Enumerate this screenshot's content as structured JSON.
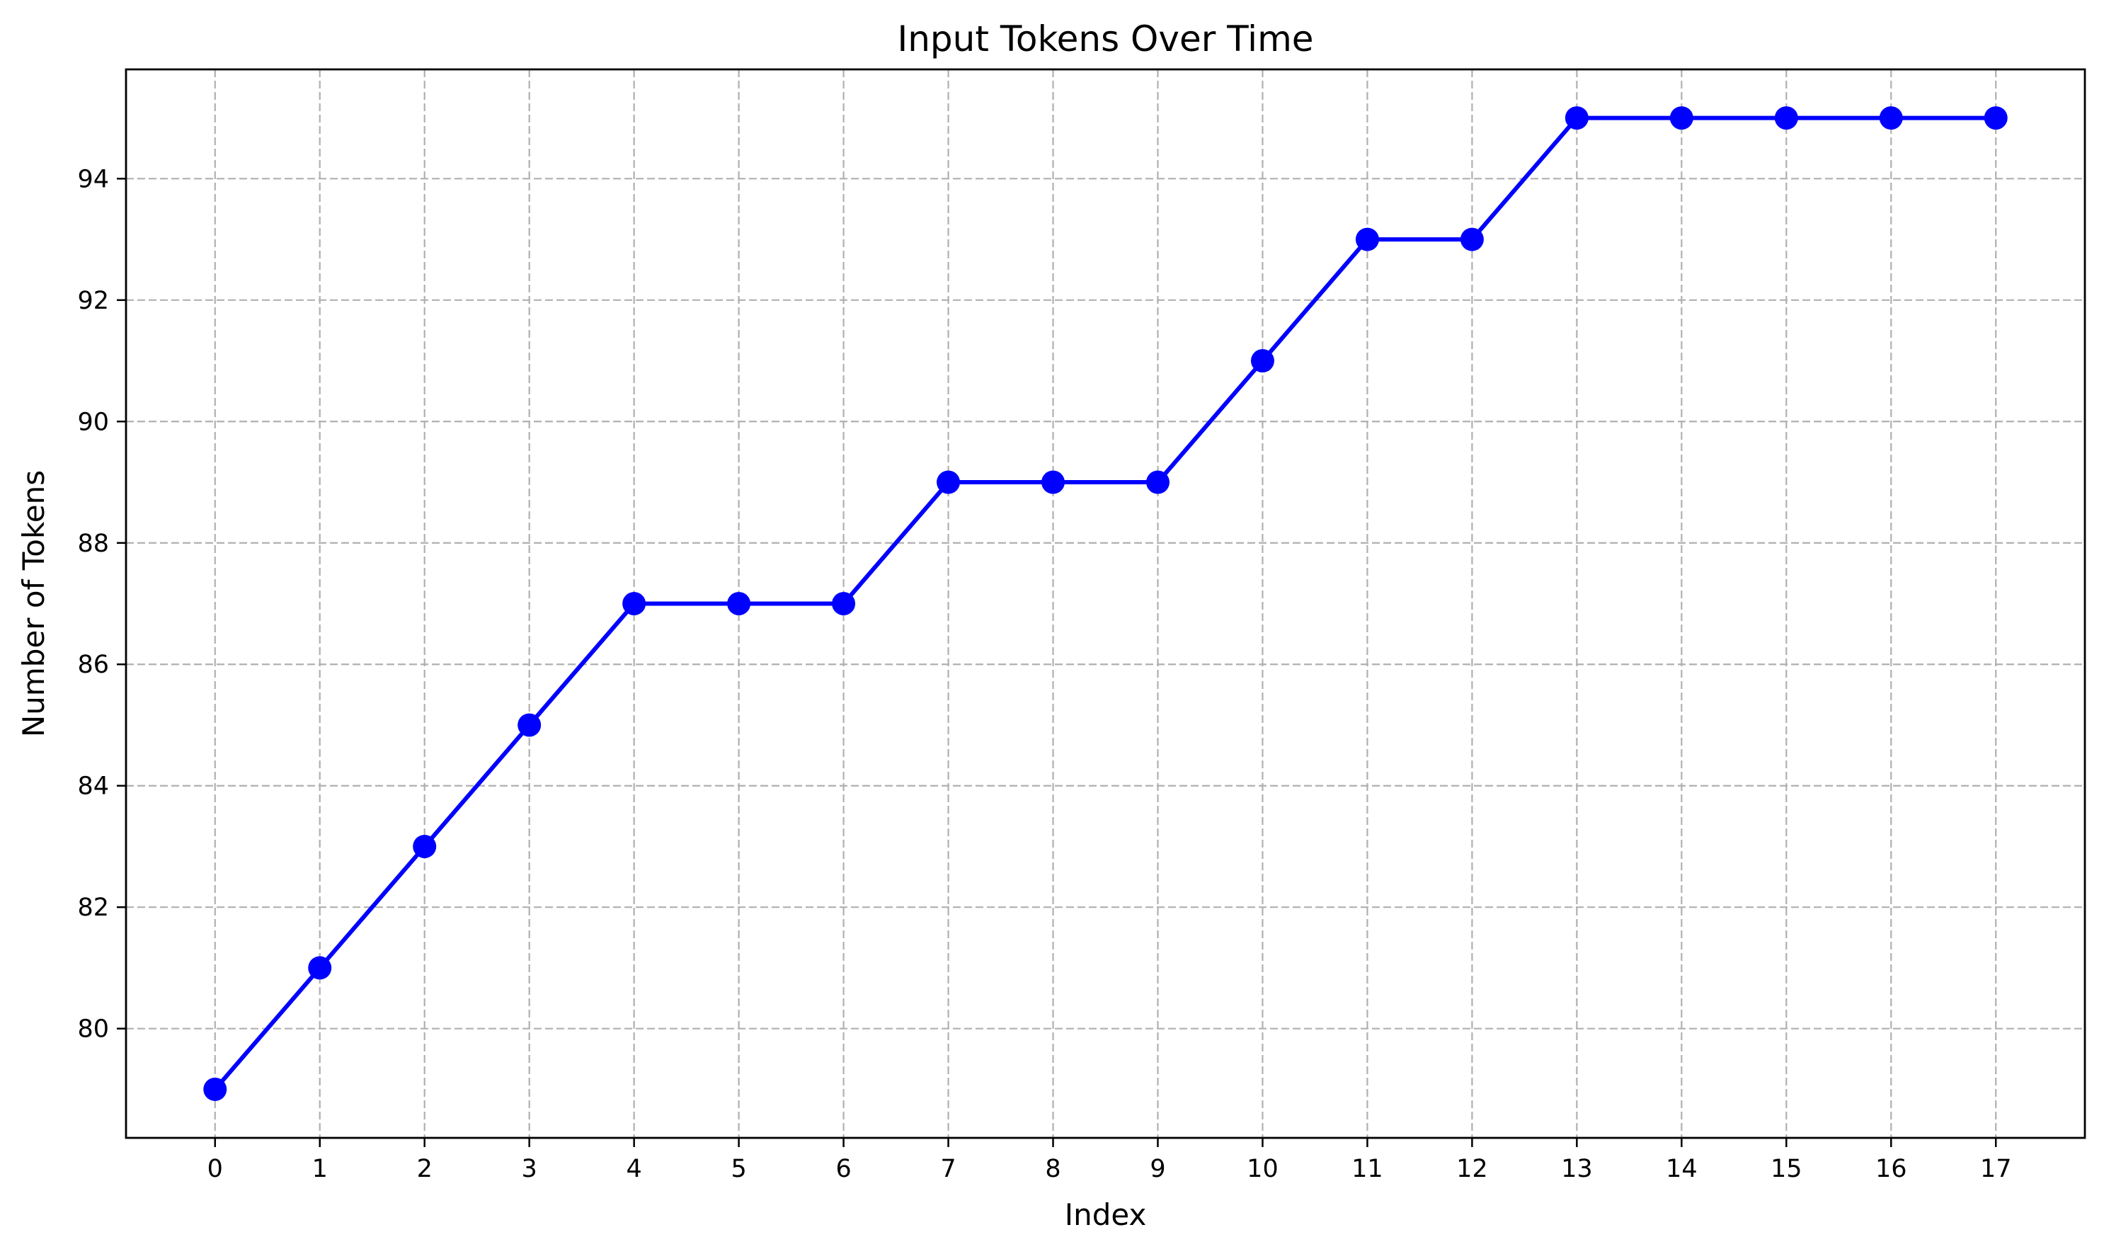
{
  "chart_data": {
    "type": "line",
    "title": "Input Tokens Over Time",
    "xlabel": "Index",
    "ylabel": "Number of Tokens",
    "x": [
      0,
      1,
      2,
      3,
      4,
      5,
      6,
      7,
      8,
      9,
      10,
      11,
      12,
      13,
      14,
      15,
      16,
      17
    ],
    "series": [
      {
        "values": [
          79,
          81,
          83,
          85,
          87,
          87,
          87,
          89,
          89,
          89,
          91,
          93,
          93,
          95,
          95,
          95,
          95,
          95
        ],
        "color": "#0000ff",
        "marker": "circle"
      }
    ],
    "xticks": [
      "0",
      "1",
      "2",
      "3",
      "4",
      "5",
      "6",
      "7",
      "8",
      "9",
      "10",
      "11",
      "12",
      "13",
      "14",
      "15",
      "16",
      "17"
    ],
    "yticks": [
      "80",
      "82",
      "84",
      "86",
      "88",
      "90",
      "92",
      "94"
    ],
    "xlim": [
      -0.85,
      17.85
    ],
    "ylim": [
      78.2,
      95.8
    ],
    "grid": true
  }
}
